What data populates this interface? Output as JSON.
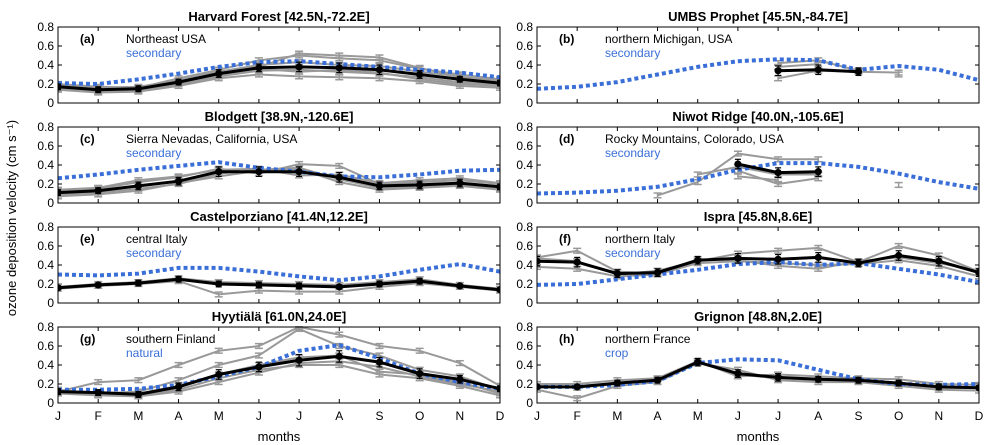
{
  "colors": {
    "model": "#3a6fd8",
    "site_years": "#999999",
    "site_mean": "#000000"
  },
  "xlabel": "months",
  "ylabel": "ozone deposition velocity (cm s⁻¹)",
  "chart_data": [
    {
      "type": "line",
      "label": "(a)",
      "title": "Harvard Forest",
      "coords": "[42.5N,-72.2E]",
      "region": "Northeast USA",
      "pft": "secondary",
      "categories": [
        "J",
        "F",
        "M",
        "A",
        "M",
        "J",
        "J",
        "A",
        "S",
        "O",
        "N",
        "D"
      ],
      "ylim": [
        0,
        0.8
      ],
      "yticks": [
        0,
        0.2,
        0.4,
        0.6,
        0.8
      ],
      "model": [
        0.21,
        0.2,
        0.25,
        0.31,
        0.38,
        0.43,
        0.44,
        0.41,
        0.38,
        0.35,
        0.32,
        0.27
      ],
      "mean": [
        0.17,
        0.14,
        0.15,
        0.22,
        0.31,
        0.37,
        0.38,
        0.37,
        0.35,
        0.3,
        0.25,
        0.21
      ],
      "mean_err": [
        0.03,
        0.03,
        0.03,
        0.03,
        0.04,
        0.04,
        0.05,
        0.05,
        0.05,
        0.04,
        0.03,
        0.03
      ],
      "years": [
        [
          0.15,
          0.12,
          0.13,
          0.2,
          0.28,
          0.34,
          0.35,
          0.33,
          0.31,
          0.27,
          0.22,
          0.19
        ],
        [
          0.19,
          0.16,
          0.17,
          0.24,
          0.33,
          0.4,
          0.43,
          0.4,
          0.39,
          0.33,
          0.28,
          0.22
        ],
        [
          0.2,
          0.17,
          0.16,
          0.26,
          0.35,
          0.45,
          0.5,
          0.47,
          0.45,
          0.36,
          0.3,
          0.25
        ],
        [
          0.14,
          0.11,
          0.12,
          0.18,
          0.26,
          0.3,
          0.28,
          0.27,
          0.26,
          0.23,
          0.18,
          0.16
        ],
        [
          0.18,
          0.15,
          0.14,
          0.22,
          0.3,
          0.38,
          0.52,
          0.5,
          0.48,
          0.37,
          0.27,
          0.24
        ],
        [
          0.16,
          0.13,
          0.15,
          0.21,
          0.29,
          0.36,
          0.33,
          0.35,
          0.32,
          0.25,
          0.2,
          0.18
        ]
      ]
    },
    {
      "type": "line",
      "label": "(b)",
      "title": "UMBS Prophet",
      "coords": "[45.5N,-84.7E]",
      "region": "northern Michigan, USA",
      "pft": "secondary",
      "categories": [
        "J",
        "F",
        "M",
        "A",
        "M",
        "J",
        "J",
        "A",
        "S",
        "O",
        "N",
        "D"
      ],
      "ylim": [
        0,
        0.8
      ],
      "yticks": [
        0,
        0.2,
        0.4,
        0.6,
        0.8
      ],
      "model": [
        0.15,
        0.17,
        0.22,
        0.3,
        0.38,
        0.44,
        0.46,
        0.45,
        0.35,
        0.39,
        0.35,
        0.24
      ],
      "mean": [
        null,
        null,
        null,
        null,
        null,
        null,
        0.34,
        0.35,
        0.33,
        null,
        null,
        null
      ],
      "mean_err": [
        null,
        null,
        null,
        null,
        null,
        null,
        0.05,
        0.05,
        0.04,
        null,
        null,
        null
      ],
      "years": [
        [
          null,
          null,
          null,
          null,
          null,
          null,
          0.26,
          0.34,
          0.33,
          0.32,
          null,
          null
        ],
        [
          null,
          null,
          null,
          null,
          null,
          null,
          0.42,
          0.45,
          0.34,
          null,
          null,
          null
        ],
        [
          null,
          null,
          null,
          null,
          null,
          null,
          0.38,
          0.41,
          null,
          0.3,
          null,
          null
        ]
      ]
    },
    {
      "type": "line",
      "label": "(c)",
      "title": "Blodgett",
      "coords": "[38.9N,-120.6E]",
      "region": "Sierra Nevadas, California, USA",
      "pft": "secondary",
      "categories": [
        "J",
        "F",
        "M",
        "A",
        "M",
        "J",
        "J",
        "A",
        "S",
        "O",
        "N",
        "D"
      ],
      "ylim": [
        0,
        0.8
      ],
      "yticks": [
        0,
        0.2,
        0.4,
        0.6,
        0.8
      ],
      "model": [
        0.26,
        0.3,
        0.35,
        0.39,
        0.43,
        0.37,
        0.33,
        0.28,
        0.27,
        0.3,
        0.34,
        0.35
      ],
      "mean": [
        0.11,
        0.13,
        0.18,
        0.23,
        0.33,
        0.33,
        0.33,
        0.27,
        0.18,
        0.19,
        0.21,
        0.17
      ],
      "mean_err": [
        0.03,
        0.03,
        0.04,
        0.04,
        0.05,
        0.05,
        0.05,
        0.05,
        0.04,
        0.04,
        0.04,
        0.03
      ],
      "years": [
        [
          0.09,
          0.11,
          0.15,
          0.2,
          0.31,
          0.35,
          0.37,
          0.25,
          0.16,
          0.17,
          0.19,
          0.15
        ],
        [
          0.13,
          0.15,
          0.22,
          0.27,
          0.36,
          0.31,
          0.41,
          0.39,
          0.2,
          0.22,
          0.24,
          0.2
        ],
        [
          0.07,
          0.09,
          0.13,
          0.21,
          0.28,
          0.34,
          0.36,
          0.22,
          0.14,
          0.16,
          0.18,
          0.14
        ],
        [
          0.14,
          0.16,
          0.24,
          0.28,
          0.35,
          0.36,
          0.29,
          0.3,
          0.21,
          0.24,
          0.26,
          0.21
        ]
      ]
    },
    {
      "type": "line",
      "label": "(d)",
      "title": "Niwot Ridge",
      "coords": "[40.0N,-105.6E]",
      "region": "Rocky Mountains, Colorado, USA",
      "pft": "secondary",
      "categories": [
        "J",
        "F",
        "M",
        "A",
        "M",
        "J",
        "J",
        "A",
        "S",
        "O",
        "N",
        "D"
      ],
      "ylim": [
        0,
        0.8
      ],
      "yticks": [
        0,
        0.2,
        0.4,
        0.6,
        0.8
      ],
      "model": [
        0.1,
        0.11,
        0.13,
        0.17,
        0.25,
        0.35,
        0.42,
        0.42,
        0.38,
        0.31,
        0.22,
        0.15
      ],
      "mean": [
        null,
        null,
        null,
        null,
        null,
        0.41,
        0.32,
        0.33,
        null,
        null,
        null,
        null
      ],
      "mean_err": [
        null,
        null,
        null,
        null,
        null,
        0.05,
        0.05,
        0.05,
        null,
        null,
        null,
        null
      ],
      "years": [
        [
          null,
          null,
          null,
          0.08,
          0.22,
          0.52,
          0.46,
          0.46,
          null,
          null,
          null,
          null
        ],
        [
          null,
          null,
          null,
          null,
          null,
          0.28,
          0.24,
          null,
          null,
          0.19,
          null,
          null
        ],
        [
          null,
          null,
          null,
          null,
          0.3,
          0.38,
          0.3,
          0.3,
          null,
          null,
          null,
          null
        ],
        [
          null,
          null,
          null,
          null,
          null,
          0.34,
          0.2,
          0.26,
          null,
          null,
          null,
          null
        ]
      ]
    },
    {
      "type": "line",
      "label": "(e)",
      "title": "Castelporziano",
      "coords": "[41.4N,12.2E]",
      "region": "central Italy",
      "pft": "secondary",
      "categories": [
        "J",
        "F",
        "M",
        "A",
        "M",
        "J",
        "J",
        "A",
        "S",
        "O",
        "N",
        "D"
      ],
      "ylim": [
        0,
        0.8
      ],
      "yticks": [
        0,
        0.2,
        0.4,
        0.6,
        0.8
      ],
      "model": [
        0.3,
        0.29,
        0.31,
        0.37,
        0.37,
        0.33,
        0.28,
        0.24,
        0.28,
        0.35,
        0.41,
        0.33
      ],
      "mean": [
        0.16,
        0.19,
        0.21,
        0.25,
        0.2,
        0.19,
        0.18,
        0.17,
        0.2,
        0.23,
        0.18,
        0.14
      ],
      "mean_err": [
        0.02,
        0.02,
        0.03,
        0.03,
        0.03,
        0.03,
        0.03,
        0.02,
        0.03,
        0.03,
        0.02,
        0.02
      ],
      "years": [
        [
          0.17,
          0.2,
          0.22,
          0.26,
          0.22,
          0.21,
          0.2,
          0.19,
          0.22,
          0.25,
          0.19,
          0.15
        ],
        [
          0.15,
          0.18,
          0.2,
          0.23,
          0.09,
          0.13,
          0.12,
          0.12,
          0.17,
          0.21,
          0.17,
          0.13
        ]
      ]
    },
    {
      "type": "line",
      "label": "(f)",
      "title": "Ispra",
      "coords": "[45.8N,8.6E]",
      "region": "northern Italy",
      "pft": "secondary",
      "categories": [
        "J",
        "F",
        "M",
        "A",
        "M",
        "J",
        "J",
        "A",
        "S",
        "O",
        "N",
        "D"
      ],
      "ylim": [
        0,
        0.8
      ],
      "yticks": [
        0,
        0.2,
        0.4,
        0.6,
        0.8
      ],
      "model": [
        0.19,
        0.2,
        0.25,
        0.3,
        0.35,
        0.41,
        0.43,
        0.4,
        0.42,
        0.36,
        0.3,
        0.22
      ],
      "mean": [
        0.44,
        0.43,
        0.31,
        0.32,
        0.45,
        0.47,
        0.46,
        0.48,
        0.42,
        0.5,
        0.44,
        0.32
      ],
      "mean_err": [
        0.05,
        0.05,
        0.04,
        0.04,
        0.04,
        0.05,
        0.05,
        0.05,
        0.04,
        0.05,
        0.05,
        0.04
      ],
      "years": [
        [
          0.47,
          0.44,
          0.3,
          0.34,
          0.44,
          0.52,
          0.55,
          0.58,
          0.43,
          0.6,
          0.5,
          0.33
        ],
        [
          0.38,
          0.36,
          0.28,
          0.3,
          0.42,
          0.44,
          0.42,
          0.4,
          0.41,
          0.45,
          0.39,
          0.28
        ],
        [
          0.48,
          0.55,
          0.33,
          0.31,
          0.46,
          0.45,
          0.39,
          0.36,
          0.44,
          0.48,
          0.42,
          0.34
        ]
      ]
    },
    {
      "type": "line",
      "label": "(g)",
      "title": "Hyytiälä",
      "coords": "[61.0N,24.0E]",
      "region": "southern Finland",
      "pft": "natural",
      "categories": [
        "J",
        "F",
        "M",
        "A",
        "M",
        "J",
        "J",
        "A",
        "S",
        "O",
        "N",
        "D"
      ],
      "ylim": [
        0,
        0.8
      ],
      "yticks": [
        0,
        0.2,
        0.4,
        0.6,
        0.8
      ],
      "model": [
        0.14,
        0.14,
        0.15,
        0.19,
        0.28,
        0.38,
        0.55,
        0.61,
        0.47,
        0.31,
        0.22,
        0.15
      ],
      "mean": [
        0.12,
        0.11,
        0.09,
        0.17,
        0.3,
        0.38,
        0.45,
        0.49,
        0.43,
        0.31,
        0.25,
        0.15
      ],
      "mean_err": [
        0.03,
        0.03,
        0.03,
        0.04,
        0.05,
        0.05,
        0.06,
        0.06,
        0.05,
        0.05,
        0.04,
        0.03
      ],
      "years": [
        [
          0.12,
          0.22,
          0.24,
          0.4,
          0.55,
          0.6,
          0.8,
          0.72,
          0.6,
          0.55,
          0.42,
          0.18
        ],
        [
          0.14,
          0.1,
          0.12,
          0.24,
          0.4,
          0.5,
          0.78,
          0.6,
          0.5,
          0.35,
          0.28,
          0.14
        ],
        [
          0.1,
          0.08,
          0.07,
          0.12,
          0.22,
          0.32,
          0.42,
          0.44,
          0.38,
          0.28,
          0.2,
          0.12
        ],
        [
          0.13,
          0.11,
          0.1,
          0.18,
          0.3,
          0.4,
          0.48,
          0.5,
          0.33,
          0.3,
          0.22,
          0.1
        ],
        [
          0.11,
          0.09,
          0.08,
          0.14,
          0.26,
          0.35,
          0.4,
          0.4,
          0.3,
          0.26,
          0.18,
          0.08
        ]
      ]
    },
    {
      "type": "line",
      "label": "(h)",
      "title": "Grignon",
      "coords": "[48.8N,2.0E]",
      "region": "northern France",
      "pft": "crop",
      "categories": [
        "J",
        "F",
        "M",
        "A",
        "M",
        "J",
        "J",
        "A",
        "S",
        "O",
        "N",
        "D"
      ],
      "ylim": [
        0,
        0.8
      ],
      "yticks": [
        0,
        0.2,
        0.4,
        0.6,
        0.8
      ],
      "model": [
        0.17,
        0.17,
        0.19,
        0.23,
        0.42,
        0.46,
        0.45,
        0.35,
        0.25,
        0.2,
        0.19,
        0.2
      ],
      "mean": [
        0.17,
        0.17,
        0.21,
        0.24,
        0.43,
        0.31,
        0.27,
        0.25,
        0.24,
        0.21,
        0.17,
        0.16
      ],
      "mean_err": [
        0.02,
        0.02,
        0.03,
        0.03,
        0.04,
        0.04,
        0.04,
        0.03,
        0.03,
        0.03,
        0.03,
        0.02
      ],
      "years": [
        [
          0.2,
          0.2,
          0.24,
          0.26,
          0.44,
          0.28,
          0.3,
          0.28,
          0.26,
          0.25,
          0.2,
          0.19
        ],
        [
          0.14,
          0.05,
          0.18,
          0.22,
          0.42,
          0.35,
          0.24,
          0.22,
          0.22,
          0.18,
          0.14,
          0.13
        ],
        [
          0.18,
          0.16,
          0.2,
          0.25,
          0.44,
          0.3,
          0.26,
          0.24,
          0.23,
          0.2,
          0.16,
          0.16
        ]
      ]
    }
  ]
}
